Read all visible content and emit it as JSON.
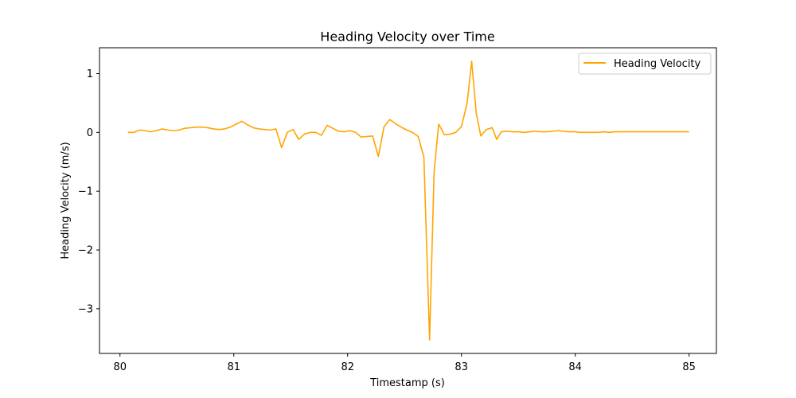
{
  "chart_data": {
    "type": "line",
    "title": "Heading Velocity over Time",
    "xlabel": "Timestamp (s)",
    "ylabel": "Heading Velocity (m/s)",
    "xlim": [
      79.82,
      85.24
    ],
    "ylim": [
      -3.76,
      1.44
    ],
    "xticks": [
      80,
      81,
      82,
      83,
      84,
      85
    ],
    "xtick_labels": [
      "80",
      "81",
      "82",
      "83",
      "84",
      "85"
    ],
    "yticks": [
      1,
      0,
      -1,
      -2,
      -3
    ],
    "ytick_labels": [
      "1",
      "0",
      "−1",
      "−2",
      "−3"
    ],
    "grid": false,
    "legend": {
      "placement": "top-right",
      "entries": [
        "Heading Velocity"
      ]
    },
    "series": [
      {
        "name": "Heading Velocity",
        "color": "#ffa500",
        "x": [
          80.07,
          80.12,
          80.17,
          80.22,
          80.27,
          80.32,
          80.37,
          80.42,
          80.47,
          80.52,
          80.57,
          80.62,
          80.67,
          80.72,
          80.77,
          80.82,
          80.87,
          80.92,
          80.97,
          81.02,
          81.07,
          81.12,
          81.17,
          81.22,
          81.27,
          81.32,
          81.37,
          81.42,
          81.47,
          81.52,
          81.57,
          81.62,
          81.67,
          81.72,
          81.77,
          81.82,
          81.87,
          81.92,
          81.97,
          82.02,
          82.07,
          82.12,
          82.17,
          82.22,
          82.27,
          82.32,
          82.37,
          82.42,
          82.47,
          82.52,
          82.57,
          82.62,
          82.67,
          82.72,
          82.76,
          82.8,
          82.85,
          82.9,
          82.95,
          83.0,
          83.05,
          83.09,
          83.13,
          83.17,
          83.22,
          83.27,
          83.31,
          83.35,
          83.4,
          83.45,
          83.5,
          83.55,
          83.6,
          83.65,
          83.7,
          83.75,
          83.8,
          83.85,
          83.9,
          83.95,
          84.0,
          84.05,
          84.1,
          84.15,
          84.2,
          84.25,
          84.3,
          84.35,
          84.4,
          84.5,
          84.6,
          84.7,
          84.8,
          84.9,
          85.0
        ],
        "values": [
          0.0,
          0.0,
          0.04,
          0.03,
          0.01,
          0.03,
          0.06,
          0.04,
          0.03,
          0.04,
          0.07,
          0.08,
          0.09,
          0.09,
          0.08,
          0.06,
          0.05,
          0.06,
          0.09,
          0.14,
          0.19,
          0.13,
          0.08,
          0.06,
          0.05,
          0.04,
          0.06,
          -0.26,
          0.0,
          0.05,
          -0.12,
          -0.03,
          0.0,
          0.0,
          -0.05,
          0.12,
          0.07,
          0.02,
          0.01,
          0.03,
          0.0,
          -0.08,
          -0.07,
          -0.06,
          -0.41,
          0.1,
          0.22,
          0.15,
          0.09,
          0.04,
          0.0,
          -0.07,
          -0.42,
          -3.53,
          -0.66,
          0.14,
          -0.04,
          -0.03,
          0.0,
          0.1,
          0.5,
          1.21,
          0.33,
          -0.06,
          0.05,
          0.08,
          -0.12,
          0.01,
          0.02,
          0.01,
          0.01,
          0.0,
          0.01,
          0.02,
          0.01,
          0.01,
          0.02,
          0.03,
          0.02,
          0.01,
          0.01,
          0.0,
          0.0,
          0.0,
          0.0,
          0.01,
          0.0,
          0.01,
          0.01,
          0.01,
          0.01,
          0.01,
          0.01,
          0.01,
          0.01
        ]
      }
    ]
  }
}
